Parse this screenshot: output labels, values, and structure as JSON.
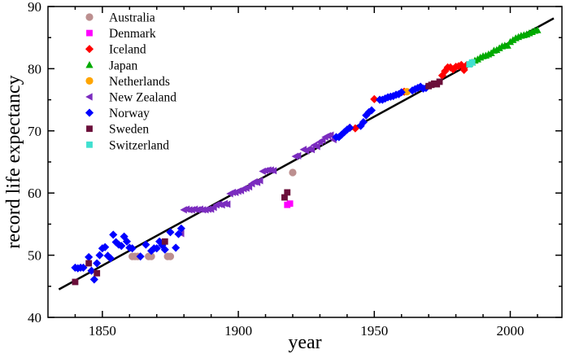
{
  "chart_data": {
    "type": "scatter",
    "title": "",
    "xlabel": "year",
    "ylabel": "record life expectancy",
    "xlim": [
      1830,
      2019
    ],
    "ylim": [
      40,
      90
    ],
    "xticks": [
      1850,
      1900,
      1950,
      2000
    ],
    "yticks": [
      40,
      50,
      60,
      70,
      80,
      90
    ],
    "grid": false,
    "legend_position": "top-left",
    "trend_line": {
      "x": [
        1834,
        2016
      ],
      "y": [
        44.5,
        88.1
      ]
    },
    "series": [
      {
        "name": "Australia",
        "color": "#bc8f8f",
        "marker": "circle",
        "points": [
          [
            1861,
            49.8
          ],
          [
            1862,
            49.8
          ],
          [
            1863,
            49.8
          ],
          [
            1867,
            49.8
          ],
          [
            1868,
            49.8
          ],
          [
            1874,
            49.8
          ],
          [
            1875,
            49.8
          ],
          [
            1920,
            63.3
          ]
        ]
      },
      {
        "name": "Denmark",
        "color": "#ff00ff",
        "marker": "square",
        "points": [
          [
            1918,
            58.1
          ],
          [
            1919,
            58.3
          ]
        ]
      },
      {
        "name": "Iceland",
        "color": "#ff0000",
        "marker": "diamond",
        "points": [
          [
            1941,
            70.5
          ],
          [
            1943,
            70.4
          ],
          [
            1950,
            75.1
          ],
          [
            1961,
            76.3
          ],
          [
            1975,
            78.9
          ],
          [
            1976,
            79.6
          ],
          [
            1977,
            80.2
          ],
          [
            1978,
            80.2
          ],
          [
            1979,
            79.9
          ],
          [
            1980,
            80.3
          ],
          [
            1981,
            80.4
          ],
          [
            1982,
            80.6
          ],
          [
            1983,
            79.8
          ],
          [
            1984,
            80.6
          ]
        ]
      },
      {
        "name": "Japan",
        "color": "#00aa00",
        "marker": "triangle-up",
        "points": [
          [
            1985,
            80.8
          ],
          [
            1986,
            81.0
          ],
          [
            1987,
            81.3
          ],
          [
            1988,
            81.5
          ],
          [
            1989,
            81.8
          ],
          [
            1990,
            82.0
          ],
          [
            1991,
            82.1
          ],
          [
            1992,
            82.3
          ],
          [
            1993,
            82.5
          ],
          [
            1994,
            82.9
          ],
          [
            1995,
            83.0
          ],
          [
            1996,
            83.3
          ],
          [
            1997,
            83.6
          ],
          [
            1998,
            83.7
          ],
          [
            1999,
            83.7
          ],
          [
            2000,
            84.3
          ],
          [
            2001,
            84.6
          ],
          [
            2002,
            84.9
          ],
          [
            2003,
            85.1
          ],
          [
            2004,
            85.3
          ],
          [
            2005,
            85.4
          ],
          [
            2006,
            85.5
          ],
          [
            2007,
            85.7
          ],
          [
            2008,
            85.9
          ],
          [
            2009,
            86.1
          ],
          [
            2010,
            86.2
          ]
        ]
      },
      {
        "name": "Netherlands",
        "color": "#ffa500",
        "marker": "circle",
        "points": [
          [
            1962,
            76.3
          ]
        ]
      },
      {
        "name": "New Zealand",
        "color": "#7b2cbf",
        "marker": "triangle-left",
        "points": [
          [
            1879,
            53.5
          ],
          [
            1880,
            57.3
          ],
          [
            1881,
            57.4
          ],
          [
            1882,
            57.3
          ],
          [
            1883,
            57.3
          ],
          [
            1884,
            57.4
          ],
          [
            1885,
            57.3
          ],
          [
            1886,
            57.4
          ],
          [
            1887,
            57.3
          ],
          [
            1888,
            57.3
          ],
          [
            1889,
            57.4
          ],
          [
            1890,
            57.4
          ],
          [
            1891,
            57.7
          ],
          [
            1892,
            58.1
          ],
          [
            1893,
            58.2
          ],
          [
            1894,
            58.1
          ],
          [
            1895,
            58.3
          ],
          [
            1896,
            58.2
          ],
          [
            1897,
            59.9
          ],
          [
            1898,
            60.1
          ],
          [
            1899,
            60.1
          ],
          [
            1900,
            60.3
          ],
          [
            1901,
            60.4
          ],
          [
            1902,
            60.7
          ],
          [
            1903,
            60.8
          ],
          [
            1904,
            61.0
          ],
          [
            1905,
            61.5
          ],
          [
            1906,
            61.8
          ],
          [
            1907,
            61.7
          ],
          [
            1908,
            62.0
          ],
          [
            1909,
            63.5
          ],
          [
            1910,
            63.6
          ],
          [
            1911,
            63.7
          ],
          [
            1912,
            63.7
          ],
          [
            1913,
            63.6
          ],
          [
            1921,
            65.9
          ],
          [
            1922,
            66.0
          ],
          [
            1924,
            67.0
          ],
          [
            1925,
            66.8
          ],
          [
            1926,
            67.1
          ],
          [
            1927,
            67.0
          ],
          [
            1928,
            67.7
          ],
          [
            1929,
            67.5
          ],
          [
            1930,
            68.2
          ],
          [
            1931,
            68.5
          ],
          [
            1932,
            69.0
          ],
          [
            1933,
            69.2
          ],
          [
            1934,
            69.3
          ],
          [
            1935,
            68.6
          ]
        ]
      },
      {
        "name": "Norway",
        "color": "#0000ff",
        "marker": "diamond",
        "points": [
          [
            1840,
            48.0
          ],
          [
            1841,
            47.9
          ],
          [
            1842,
            48.0
          ],
          [
            1843,
            48.0
          ],
          [
            1845,
            49.7
          ],
          [
            1846,
            47.5
          ],
          [
            1847,
            46.1
          ],
          [
            1848,
            48.7
          ],
          [
            1849,
            50.0
          ],
          [
            1850,
            51.1
          ],
          [
            1851,
            51.3
          ],
          [
            1852,
            49.9
          ],
          [
            1853,
            49.5
          ],
          [
            1854,
            53.3
          ],
          [
            1855,
            52.1
          ],
          [
            1856,
            51.7
          ],
          [
            1857,
            51.5
          ],
          [
            1858,
            53.0
          ],
          [
            1859,
            52.2
          ],
          [
            1860,
            51.2
          ],
          [
            1861,
            51.1
          ],
          [
            1864,
            49.8
          ],
          [
            1866,
            51.7
          ],
          [
            1868,
            50.7
          ],
          [
            1869,
            51.1
          ],
          [
            1870,
            51.1
          ],
          [
            1871,
            52.2
          ],
          [
            1872,
            51.6
          ],
          [
            1873,
            50.9
          ],
          [
            1875,
            53.7
          ],
          [
            1877,
            51.2
          ],
          [
            1878,
            53.4
          ],
          [
            1879,
            54.3
          ],
          [
            1936,
            69.0
          ],
          [
            1937,
            69.0
          ],
          [
            1938,
            69.4
          ],
          [
            1939,
            69.8
          ],
          [
            1940,
            70.2
          ],
          [
            1941,
            70.5
          ],
          [
            1945,
            70.8
          ],
          [
            1946,
            71.4
          ],
          [
            1947,
            72.5
          ],
          [
            1948,
            73.0
          ],
          [
            1949,
            73.3
          ],
          [
            1952,
            75.0
          ],
          [
            1953,
            75.0
          ],
          [
            1954,
            75.2
          ],
          [
            1955,
            75.4
          ],
          [
            1956,
            75.5
          ],
          [
            1957,
            75.6
          ],
          [
            1958,
            75.8
          ],
          [
            1959,
            75.9
          ],
          [
            1960,
            76.2
          ],
          [
            1964,
            76.5
          ],
          [
            1965,
            76.7
          ],
          [
            1966,
            76.9
          ],
          [
            1967,
            77.1
          ],
          [
            1968,
            76.8
          ],
          [
            1969,
            76.9
          ]
        ]
      },
      {
        "name": "Sweden",
        "color": "#6b0f3a",
        "marker": "square",
        "points": [
          [
            1840,
            45.7
          ],
          [
            1845,
            48.7
          ],
          [
            1848,
            47.1
          ],
          [
            1873,
            52.2
          ],
          [
            1917,
            59.3
          ],
          [
            1918,
            60.1
          ],
          [
            1970,
            77.2
          ],
          [
            1971,
            77.4
          ],
          [
            1972,
            77.6
          ],
          [
            1973,
            77.5
          ],
          [
            1974,
            77.9
          ]
        ]
      },
      {
        "name": "Switzerland",
        "color": "#40e0d0",
        "marker": "square",
        "points": [
          [
            1985,
            80.7
          ],
          [
            1986,
            81.0
          ]
        ]
      }
    ]
  }
}
